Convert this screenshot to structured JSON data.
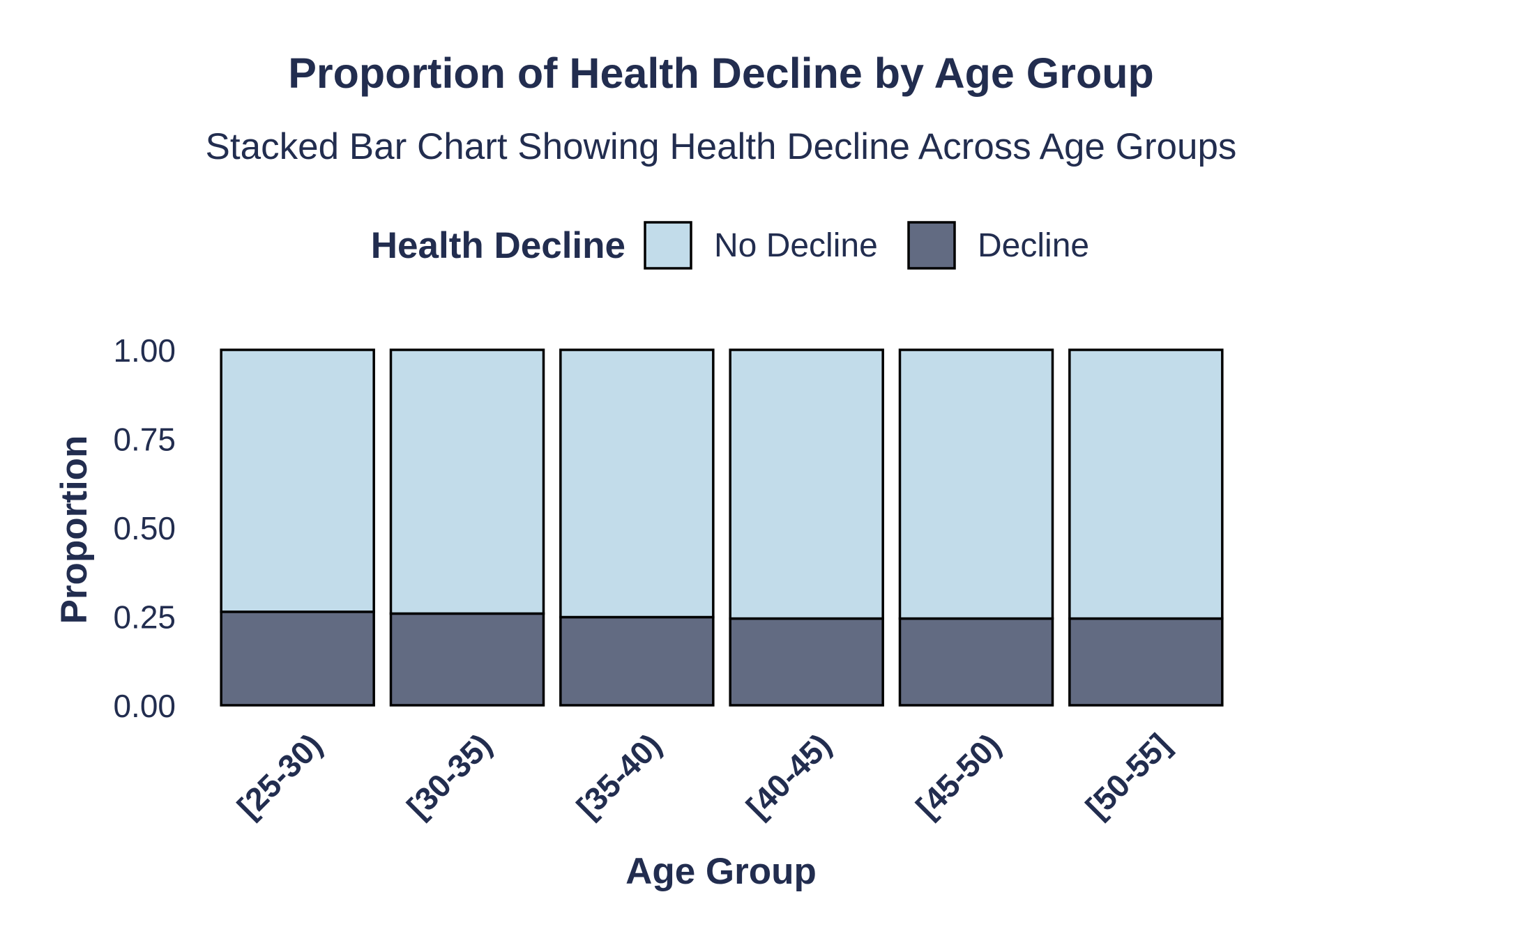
{
  "chart_data": {
    "type": "bar",
    "stacked": true,
    "title": "Proportion of Health Decline by Age Group",
    "subtitle": "Stacked Bar Chart Showing Health Decline Across Age Groups",
    "xlabel": "Age Group",
    "ylabel": "Proportion",
    "ylim": [
      0,
      1
    ],
    "yticks": [
      0,
      0.25,
      0.5,
      0.75,
      1
    ],
    "ytick_labels": [
      "0.00",
      "0.25",
      "0.50",
      "0.75",
      "1.00"
    ],
    "grid": false,
    "legend": {
      "title": "Health Decline",
      "placement": "top-center"
    },
    "categories": [
      "[25-30)",
      "[30-35)",
      "[35-40)",
      "[40-45)",
      "[45-50)",
      "[50-55]"
    ],
    "series": [
      {
        "name": "Decline",
        "color": "#626b82",
        "values": [
          0.263,
          0.258,
          0.248,
          0.244,
          0.244,
          0.244
        ]
      },
      {
        "name": "No Decline",
        "color": "#c2dcea",
        "values": [
          0.737,
          0.742,
          0.752,
          0.756,
          0.756,
          0.756
        ]
      }
    ],
    "legend_order": [
      "No Decline",
      "Decline"
    ],
    "text_color": "#222d4f",
    "bar_outline_color": "#000000"
  }
}
